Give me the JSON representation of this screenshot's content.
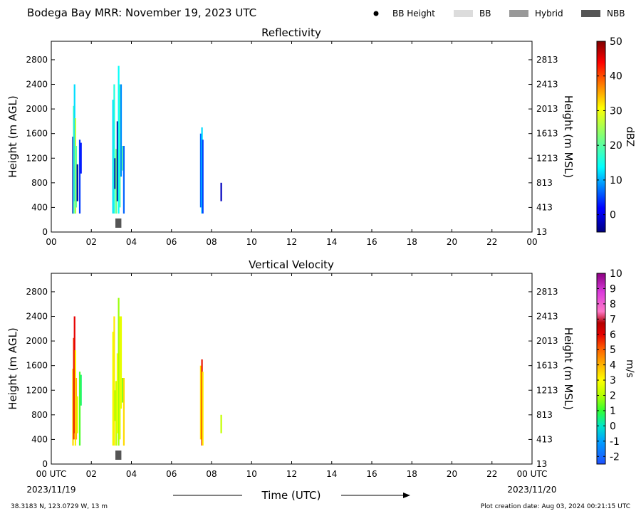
{
  "header": {
    "title": "Bodega Bay MRR:  November 19, 2023 UTC",
    "legend": [
      {
        "label": "BB Height",
        "symbol": "dot",
        "color": "#000000"
      },
      {
        "label": "BB",
        "symbol": "box",
        "color": "#dcdcdc"
      },
      {
        "label": "Hybrid",
        "symbol": "box",
        "color": "#999999"
      },
      {
        "label": "NBB",
        "symbol": "box",
        "color": "#555555"
      }
    ]
  },
  "footer": {
    "location": "38.3183 N, 123.0729 W, 13 m",
    "creation": "Plot creation date: Aug 03, 2024 00:21:15 UTC",
    "xlabel": "Time (UTC)",
    "start_date": "2023/11/19",
    "end_date": "2023/11/20"
  },
  "chart_data": [
    {
      "type": "heatmap",
      "title": "Reflectivity",
      "xlabel": "",
      "ylabel": "Height (m AGL)",
      "ylabel_right": "Height (m MSL)",
      "xlim": [
        0,
        24
      ],
      "ylim": [
        0,
        3100
      ],
      "x_ticks": [
        "00",
        "02",
        "04",
        "06",
        "08",
        "10",
        "12",
        "14",
        "16",
        "18",
        "20",
        "22",
        "00"
      ],
      "y_ticks": [
        0,
        400,
        800,
        1200,
        1600,
        2000,
        2400,
        2800
      ],
      "y_ticks_right": [
        13,
        413,
        813,
        1213,
        1613,
        2013,
        2413,
        2813
      ],
      "colorbar": {
        "label": "dBZ",
        "range": [
          -5,
          50
        ],
        "ticks": [
          0,
          10,
          20,
          30,
          40,
          50
        ],
        "scale": "jet"
      },
      "segments": [
        {
          "t": 1.08,
          "h0": 300,
          "h1": 1550,
          "v": -2
        },
        {
          "t": 1.12,
          "h0": 300,
          "h1": 2050,
          "v": 18
        },
        {
          "t": 1.16,
          "h0": 500,
          "h1": 2400,
          "v": 12
        },
        {
          "t": 1.2,
          "h0": 300,
          "h1": 1850,
          "v": 26
        },
        {
          "t": 1.24,
          "h0": 400,
          "h1": 1400,
          "v": 20
        },
        {
          "t": 1.3,
          "h0": 500,
          "h1": 1100,
          "v": -4
        },
        {
          "t": 1.42,
          "h0": 300,
          "h1": 1500,
          "v": 4
        },
        {
          "t": 1.48,
          "h0": 950,
          "h1": 1450,
          "v": 2
        },
        {
          "t": 3.08,
          "h0": 300,
          "h1": 2150,
          "v": 12
        },
        {
          "t": 3.14,
          "h0": 300,
          "h1": 2400,
          "v": 16
        },
        {
          "t": 3.18,
          "h0": 700,
          "h1": 1200,
          "v": -3
        },
        {
          "t": 3.24,
          "h0": 300,
          "h1": 1350,
          "v": 22
        },
        {
          "t": 3.3,
          "h0": 500,
          "h1": 1800,
          "v": -4
        },
        {
          "t": 3.36,
          "h0": 300,
          "h1": 2700,
          "v": 14
        },
        {
          "t": 3.42,
          "h0": 400,
          "h1": 2400,
          "v": 18
        },
        {
          "t": 3.48,
          "h0": 900,
          "h1": 2400,
          "v": 8
        },
        {
          "t": 3.56,
          "h0": 1000,
          "h1": 1400,
          "v": 20
        },
        {
          "t": 3.62,
          "h0": 300,
          "h1": 1400,
          "v": 6
        },
        {
          "t": 7.46,
          "h0": 400,
          "h1": 1600,
          "v": 6
        },
        {
          "t": 7.52,
          "h0": 300,
          "h1": 1700,
          "v": 12
        },
        {
          "t": 7.56,
          "h0": 300,
          "h1": 1500,
          "v": 4
        },
        {
          "t": 8.48,
          "h0": 500,
          "h1": 800,
          "v": -2
        }
      ],
      "bright_band": [
        {
          "t0": 3.2,
          "t1": 3.5,
          "type": "NBB"
        }
      ]
    },
    {
      "type": "heatmap",
      "title": "Vertical Velocity",
      "xlabel": "Time (UTC)",
      "ylabel": "Height (m AGL)",
      "ylabel_right": "Height (m MSL)",
      "xlim": [
        0,
        24
      ],
      "ylim": [
        0,
        3100
      ],
      "x_ticks": [
        "00 UTC",
        "02",
        "04",
        "06",
        "08",
        "10",
        "12",
        "14",
        "16",
        "18",
        "20",
        "22",
        "00 UTC"
      ],
      "y_ticks": [
        0,
        400,
        800,
        1200,
        1600,
        2000,
        2400,
        2800
      ],
      "y_ticks_right": [
        13,
        413,
        813,
        1213,
        1613,
        2013,
        2413,
        2813
      ],
      "colorbar": {
        "label": "m/s",
        "range": [
          -2.5,
          10
        ],
        "ticks": [
          -2,
          -1,
          0,
          1,
          2,
          3,
          4,
          5,
          6,
          7,
          8,
          9,
          10
        ],
        "scale": "velocity"
      },
      "segments": [
        {
          "t": 1.08,
          "h0": 300,
          "h1": 1550,
          "v": 3.5
        },
        {
          "t": 1.12,
          "h0": 400,
          "h1": 2050,
          "v": 5.5
        },
        {
          "t": 1.16,
          "h0": 500,
          "h1": 2400,
          "v": 6
        },
        {
          "t": 1.2,
          "h0": 300,
          "h1": 1850,
          "v": 3.2
        },
        {
          "t": 1.24,
          "h0": 400,
          "h1": 1400,
          "v": 4
        },
        {
          "t": 1.3,
          "h0": 500,
          "h1": 1100,
          "v": 2.6
        },
        {
          "t": 1.42,
          "h0": 300,
          "h1": 1500,
          "v": 1.2
        },
        {
          "t": 1.48,
          "h0": 950,
          "h1": 1450,
          "v": 0.6
        },
        {
          "t": 3.08,
          "h0": 300,
          "h1": 2150,
          "v": 2.8
        },
        {
          "t": 3.14,
          "h0": 300,
          "h1": 2400,
          "v": 3.3
        },
        {
          "t": 3.18,
          "h0": 700,
          "h1": 1200,
          "v": 2
        },
        {
          "t": 3.24,
          "h0": 300,
          "h1": 1350,
          "v": 2.2
        },
        {
          "t": 3.3,
          "h0": 500,
          "h1": 1800,
          "v": 3
        },
        {
          "t": 3.36,
          "h0": 300,
          "h1": 2700,
          "v": 1.8
        },
        {
          "t": 3.42,
          "h0": 400,
          "h1": 2400,
          "v": 2.5
        },
        {
          "t": 3.48,
          "h0": 900,
          "h1": 2400,
          "v": 2.7
        },
        {
          "t": 3.56,
          "h0": 1000,
          "h1": 1400,
          "v": 1.5
        },
        {
          "t": 3.62,
          "h0": 300,
          "h1": 1400,
          "v": 3.5
        },
        {
          "t": 7.46,
          "h0": 400,
          "h1": 1600,
          "v": 3.5
        },
        {
          "t": 7.52,
          "h0": 300,
          "h1": 1700,
          "v": 5.8
        },
        {
          "t": 7.56,
          "h0": 300,
          "h1": 1500,
          "v": 3.2
        },
        {
          "t": 8.48,
          "h0": 500,
          "h1": 800,
          "v": 2.2
        }
      ],
      "bright_band": [
        {
          "t0": 3.2,
          "t1": 3.5,
          "type": "NBB"
        }
      ]
    }
  ]
}
